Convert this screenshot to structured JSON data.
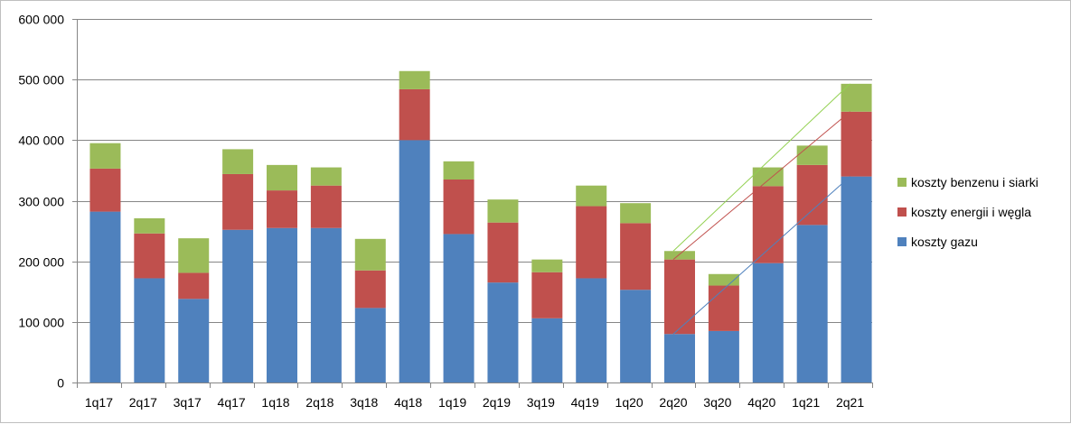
{
  "chart_data": {
    "type": "bar",
    "stacked": true,
    "categories": [
      "1q17",
      "2q17",
      "3q17",
      "4q17",
      "1q18",
      "2q18",
      "3q18",
      "4q18",
      "1q19",
      "2q19",
      "3q19",
      "4q19",
      "1q20",
      "2q20",
      "3q20",
      "4q20",
      "1q21",
      "2q21"
    ],
    "series": [
      {
        "name": "koszty gazu",
        "color": "#4f81bd",
        "values": [
          282000,
          172000,
          138000,
          252000,
          255000,
          255000,
          123000,
          400000,
          245000,
          165000,
          106000,
          172000,
          153000,
          80000,
          85000,
          197000,
          260000,
          340000
        ]
      },
      {
        "name": "koszty energii i węgla",
        "color": "#c0504d",
        "values": [
          71000,
          74000,
          43000,
          92000,
          62000,
          70000,
          62000,
          84000,
          90000,
          99000,
          76000,
          119000,
          110000,
          123000,
          75000,
          127000,
          99000,
          107000
        ]
      },
      {
        "name": "koszty benzenu i siarki",
        "color": "#9bbb59",
        "values": [
          42000,
          25000,
          57000,
          41000,
          42000,
          30000,
          52000,
          30000,
          30000,
          38000,
          21000,
          34000,
          33000,
          14000,
          19000,
          31000,
          32000,
          46000
        ]
      }
    ],
    "ylim": [
      0,
      600000
    ],
    "yticks": [
      0,
      100000,
      200000,
      300000,
      400000,
      500000,
      600000
    ],
    "ytick_labels": [
      "0",
      "100 000",
      "200 000",
      "300 000",
      "400 000",
      "500 000",
      "600 000"
    ],
    "grid": true,
    "legend_position": "right",
    "title": "",
    "xlabel": "",
    "ylabel": "",
    "trend_lines": [
      {
        "series": "koszty gazu",
        "color": "#4f81bd",
        "from": "2q20",
        "to": "2q21"
      },
      {
        "series": "koszty energii i węgla",
        "color": "#c0504d",
        "from": "2q20",
        "to": "2q21"
      },
      {
        "series": "koszty benzenu i siarki",
        "color": "#92d050",
        "from": "2q20",
        "to": "2q21"
      }
    ]
  }
}
